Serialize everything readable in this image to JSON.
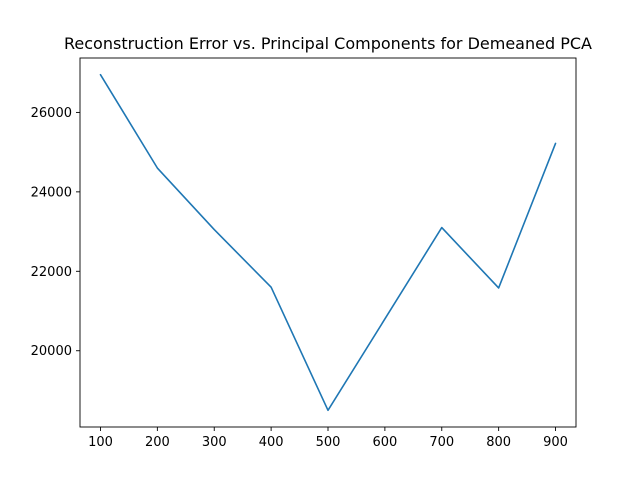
{
  "chart_data": {
    "type": "line",
    "title": "Reconstruction Error vs. Principal Components for Demeaned PCA",
    "xlabel": "",
    "ylabel": "",
    "x": [
      100,
      200,
      300,
      400,
      500,
      600,
      700,
      800,
      900
    ],
    "series": [
      {
        "values": [
          26950,
          24600,
          23050,
          21600,
          18500,
          20800,
          23100,
          21580,
          25220
        ],
        "color": "#1f77b4"
      }
    ],
    "xlim": [
      64,
      936
    ],
    "ylim": [
      18080,
      27370
    ],
    "xticks": [
      100,
      200,
      300,
      400,
      500,
      600,
      700,
      800,
      900
    ],
    "yticks": [
      20000,
      22000,
      24000,
      26000
    ],
    "xtick_labels": [
      "100",
      "200",
      "300",
      "400",
      "500",
      "600",
      "700",
      "800",
      "900"
    ],
    "ytick_labels": [
      "20000",
      "22000",
      "24000",
      "26000"
    ],
    "grid": false,
    "legend": "none"
  }
}
